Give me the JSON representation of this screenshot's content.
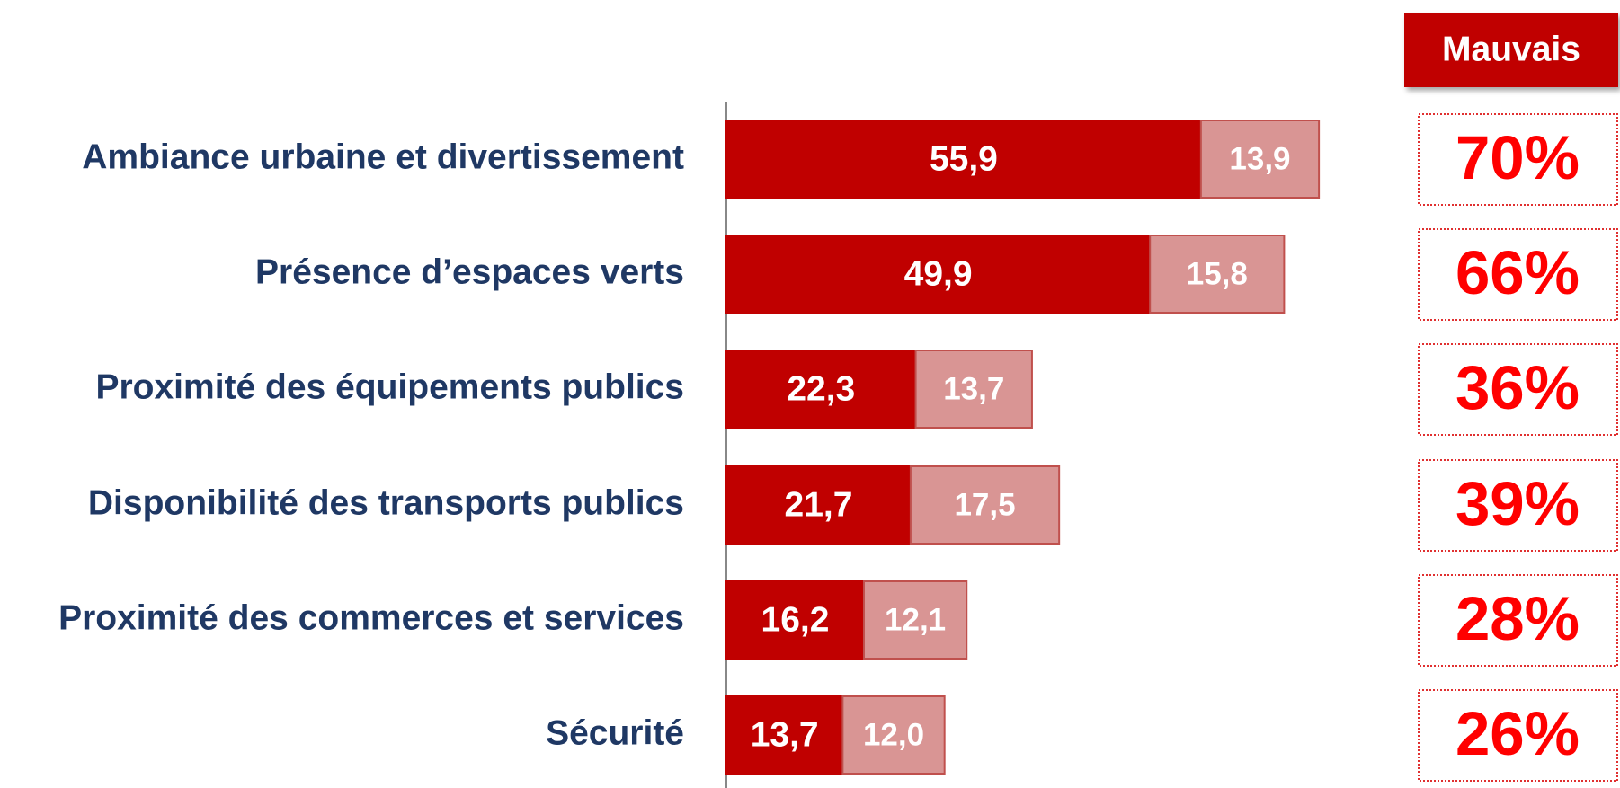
{
  "chart_data": {
    "type": "stacked-bar-horizontal",
    "categories": [
      "Ambiance urbaine et divertissement",
      "Présence d’espaces verts",
      "Proximité des équipements publics",
      "Disponibilité des transports publics",
      "Proximité des commerces et services",
      "Sécurité"
    ],
    "series": [
      {
        "color": "#c00000",
        "values": [
          55.9,
          49.9,
          22.3,
          21.7,
          16.2,
          13.7
        ],
        "value_labels": [
          "55,9",
          "49,9",
          "22,3",
          "21,7",
          "16,2",
          "13,7"
        ]
      },
      {
        "color": "#d99594",
        "values": [
          13.9,
          15.8,
          13.7,
          17.5,
          12.1,
          12.0
        ],
        "value_labels": [
          "13,9",
          "15,8",
          "13,7",
          "17,5",
          "12,1",
          "12,0"
        ]
      }
    ],
    "xlim": [
      0,
      70
    ],
    "summary": {
      "title": "Mauvais",
      "labels": [
        "70%",
        "66%",
        "36%",
        "39%",
        "28%",
        "26%"
      ]
    }
  }
}
